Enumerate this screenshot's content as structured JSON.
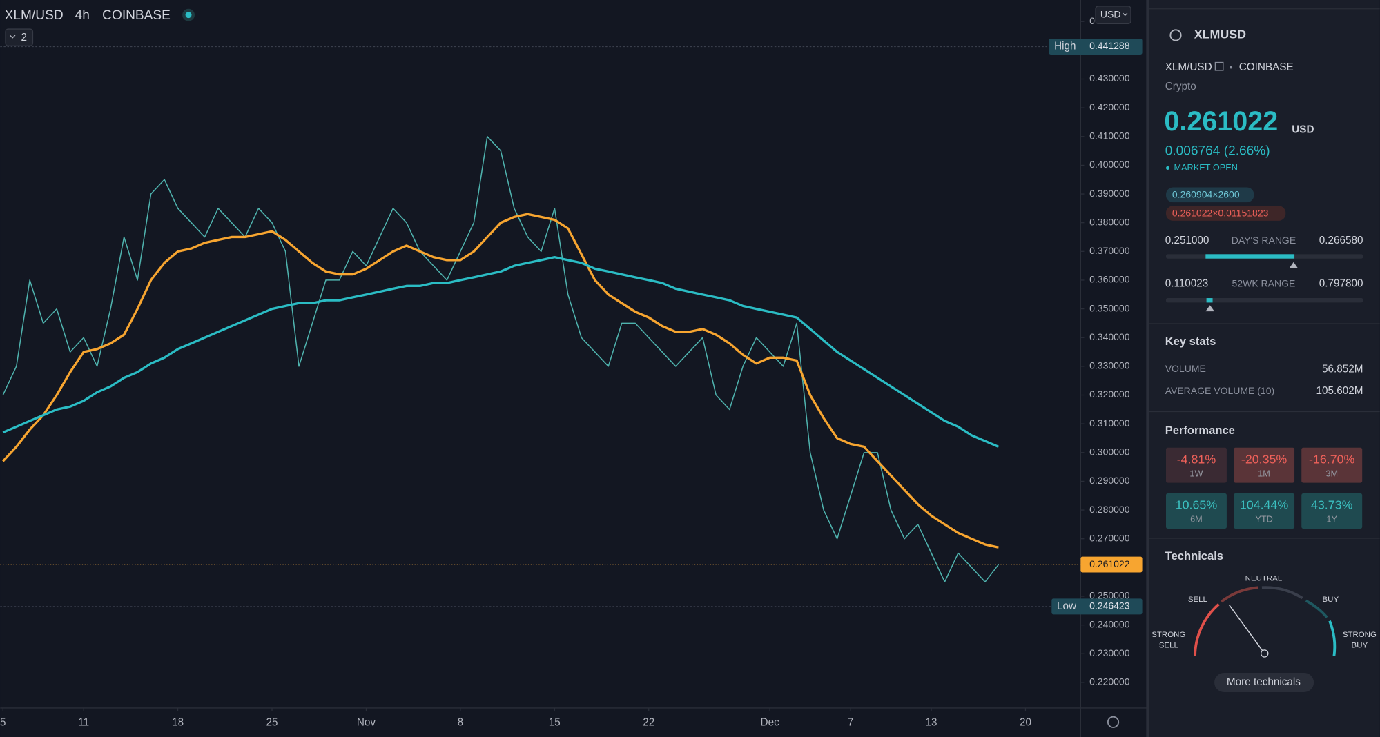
{
  "chart_data": {
    "type": "line",
    "header": {
      "symbol": "XLM/USD",
      "interval": "4h",
      "exchange": "COINBASE",
      "indicator_count": "2",
      "currency_button": "USD"
    },
    "high": {
      "label": "High",
      "value": 0.441288
    },
    "low": {
      "label": "Low",
      "value": 0.246423
    },
    "last_price": 0.261022,
    "x": [
      0,
      1,
      2,
      3,
      4,
      5,
      6,
      7,
      8,
      9,
      10,
      11,
      12,
      13,
      14,
      15,
      16,
      17,
      18,
      19,
      20,
      21,
      22,
      23,
      24,
      25,
      26,
      27,
      28,
      29,
      30,
      31,
      32,
      33,
      34,
      35,
      36,
      37,
      38,
      39,
      40,
      41,
      42,
      43,
      44,
      45,
      46,
      47,
      48,
      49,
      50,
      51,
      52,
      53,
      54,
      55,
      56,
      57,
      58,
      59,
      60,
      61,
      62,
      63,
      64,
      65,
      66,
      67,
      68,
      69,
      70,
      71,
      72,
      73,
      74
    ],
    "series": [
      {
        "color": "#4fb3ae",
        "values": [
          0.32,
          0.33,
          0.36,
          0.345,
          0.35,
          0.335,
          0.34,
          0.33,
          0.35,
          0.375,
          0.36,
          0.39,
          0.395,
          0.385,
          0.38,
          0.375,
          0.385,
          0.38,
          0.375,
          0.385,
          0.38,
          0.37,
          0.33,
          0.345,
          0.36,
          0.36,
          0.37,
          0.365,
          0.375,
          0.385,
          0.38,
          0.37,
          0.365,
          0.36,
          0.37,
          0.38,
          0.41,
          0.405,
          0.385,
          0.375,
          0.37,
          0.385,
          0.355,
          0.34,
          0.335,
          0.33,
          0.345,
          0.345,
          0.34,
          0.335,
          0.33,
          0.335,
          0.34,
          0.32,
          0.315,
          0.33,
          0.34,
          0.335,
          0.33,
          0.345,
          0.3,
          0.28,
          0.27,
          0.285,
          0.3,
          0.3,
          0.28,
          0.27,
          0.275,
          0.265,
          0.255,
          0.265,
          0.26,
          0.255,
          0.261022
        ]
      },
      {
        "color": "#f7a530",
        "values": [
          0.297,
          0.302,
          0.308,
          0.313,
          0.32,
          0.328,
          0.335,
          0.336,
          0.338,
          0.341,
          0.35,
          0.36,
          0.366,
          0.37,
          0.371,
          0.373,
          0.374,
          0.375,
          0.375,
          0.376,
          0.377,
          0.374,
          0.37,
          0.366,
          0.363,
          0.362,
          0.362,
          0.364,
          0.367,
          0.37,
          0.372,
          0.37,
          0.368,
          0.367,
          0.367,
          0.37,
          0.375,
          0.38,
          0.382,
          0.383,
          0.382,
          0.381,
          0.378,
          0.369,
          0.36,
          0.355,
          0.352,
          0.349,
          0.347,
          0.344,
          0.342,
          0.342,
          0.343,
          0.341,
          0.338,
          0.334,
          0.331,
          0.333,
          0.333,
          0.332,
          0.32,
          0.312,
          0.305,
          0.303,
          0.302,
          0.297,
          0.292,
          0.287,
          0.282,
          0.278,
          0.275,
          0.272,
          0.27,
          0.268,
          0.267
        ]
      },
      {
        "color": "#2bbcc4",
        "values": [
          0.307,
          0.309,
          0.311,
          0.313,
          0.315,
          0.316,
          0.318,
          0.321,
          0.323,
          0.326,
          0.328,
          0.331,
          0.333,
          0.336,
          0.338,
          0.34,
          0.342,
          0.344,
          0.346,
          0.348,
          0.35,
          0.351,
          0.352,
          0.352,
          0.353,
          0.353,
          0.354,
          0.355,
          0.356,
          0.357,
          0.358,
          0.358,
          0.359,
          0.359,
          0.36,
          0.361,
          0.362,
          0.363,
          0.365,
          0.366,
          0.367,
          0.368,
          0.367,
          0.366,
          0.364,
          0.363,
          0.362,
          0.361,
          0.36,
          0.359,
          0.357,
          0.356,
          0.355,
          0.354,
          0.353,
          0.351,
          0.35,
          0.349,
          0.348,
          0.347,
          0.343,
          0.339,
          0.335,
          0.332,
          0.329,
          0.326,
          0.323,
          0.32,
          0.317,
          0.314,
          0.311,
          0.309,
          0.306,
          0.304,
          0.302
        ]
      }
    ],
    "xlim": [
      -0.2,
      80.1
    ],
    "xticks": [
      {
        "value": 0,
        "label": "5"
      },
      {
        "value": 6,
        "label": "11"
      },
      {
        "value": 13,
        "label": "18"
      },
      {
        "value": 20,
        "label": "25"
      },
      {
        "value": 27,
        "label": "Nov"
      },
      {
        "value": 34,
        "label": "8"
      },
      {
        "value": 41,
        "label": "15"
      },
      {
        "value": 48,
        "label": "22"
      },
      {
        "value": 57,
        "label": "Dec"
      },
      {
        "value": 63,
        "label": "7"
      },
      {
        "value": 69,
        "label": "13"
      },
      {
        "value": 76,
        "label": "20"
      }
    ],
    "ylim": [
      0.2111,
      0.4575
    ],
    "yticks": [
      {
        "value": 0.22,
        "label": "0.220000"
      },
      {
        "value": 0.23,
        "label": "0.230000"
      },
      {
        "value": 0.24,
        "label": "0.240000"
      },
      {
        "value": 0.25,
        "label": "0.250000"
      },
      {
        "value": 0.27,
        "label": "0.270000"
      },
      {
        "value": 0.28,
        "label": "0.280000"
      },
      {
        "value": 0.29,
        "label": "0.290000"
      },
      {
        "value": 0.3,
        "label": "0.300000"
      },
      {
        "value": 0.31,
        "label": "0.310000"
      },
      {
        "value": 0.32,
        "label": "0.320000"
      },
      {
        "value": 0.33,
        "label": "0.330000"
      },
      {
        "value": 0.34,
        "label": "0.340000"
      },
      {
        "value": 0.35,
        "label": "0.350000"
      },
      {
        "value": 0.36,
        "label": "0.360000"
      },
      {
        "value": 0.37,
        "label": "0.370000"
      },
      {
        "value": 0.38,
        "label": "0.380000"
      },
      {
        "value": 0.39,
        "label": "0.390000"
      },
      {
        "value": 0.4,
        "label": "0.400000"
      },
      {
        "value": 0.41,
        "label": "0.410000"
      },
      {
        "value": 0.42,
        "label": "0.420000"
      },
      {
        "value": 0.43,
        "label": "0.430000"
      },
      {
        "value": 0.45,
        "label": "0"
      }
    ],
    "grid": false
  },
  "sidebar": {
    "symbol": "XLMUSD",
    "pair": "XLM/USD",
    "separator": "•",
    "exchange": "COINBASE",
    "market": "Crypto",
    "price": "0.261022",
    "currency": "USD",
    "change": "0.006764 (2.66%)",
    "status": "MARKET OPEN",
    "bid": "0.260904×2600",
    "ask": "0.261022×0.01151823",
    "day_low": "0.251000",
    "day_range_label": "DAY'S RANGE",
    "day_high": "0.266580",
    "wk_low": "0.110023",
    "wk_range_label": "52WK RANGE",
    "wk_high": "0.797800",
    "key_stats": "Key stats",
    "volume_label": "VOLUME",
    "volume": "56.852M",
    "avg_volume_label": "AVERAGE VOLUME (10)",
    "avg_volume": "105.602M",
    "performance": "Performance",
    "tiles": [
      {
        "value": "-4.81%",
        "period": "1W",
        "color": "#f0615a",
        "bg": "#3a2a33"
      },
      {
        "value": "-20.35%",
        "period": "1M",
        "color": "#f0615a",
        "bg": "#5a3438"
      },
      {
        "value": "-16.70%",
        "period": "3M",
        "color": "#f0615a",
        "bg": "#5a3438"
      },
      {
        "value": "10.65%",
        "period": "6M",
        "color": "#3bc0c0",
        "bg": "#1f4a50"
      },
      {
        "value": "104.44%",
        "period": "YTD",
        "color": "#3bc0c0",
        "bg": "#1f4a50"
      },
      {
        "value": "43.73%",
        "period": "1Y",
        "color": "#3bc0c0",
        "bg": "#1f4a50"
      }
    ],
    "technicals": "Technicals",
    "neutral": "NEUTRAL",
    "sell": "SELL",
    "buy": "BUY",
    "strong_sell": [
      "STRONG",
      "SELL"
    ],
    "strong_buy": [
      "STRONG",
      "BUY"
    ],
    "more": "More technicals"
  }
}
